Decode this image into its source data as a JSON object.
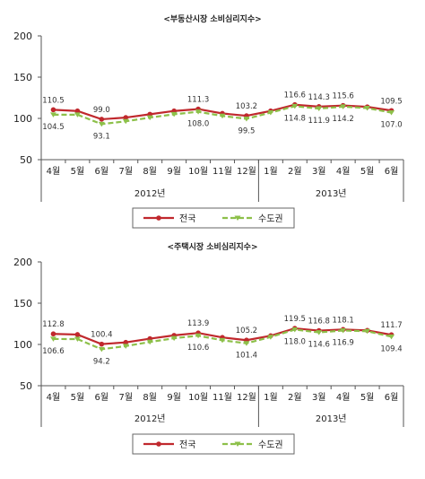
{
  "chart_data": [
    {
      "type": "line",
      "title": "<부동산시장 소비심리지수>",
      "categories": [
        "4월",
        "5월",
        "6월",
        "7월",
        "8월",
        "9월",
        "10월",
        "11월",
        "12월",
        "1월",
        "2월",
        "3월",
        "4월",
        "5월",
        "6월"
      ],
      "groups": [
        {
          "label": "2012년",
          "from": 0,
          "to": 8
        },
        {
          "label": "2013년",
          "from": 9,
          "to": 14
        }
      ],
      "ylim": [
        50,
        200
      ],
      "yticks": [
        50,
        100,
        150,
        200
      ],
      "series": [
        {
          "name": "전국",
          "color": "#c0282d",
          "dashed": false,
          "values": [
            110.5,
            109.0,
            99.0,
            101.0,
            105.0,
            109.0,
            111.3,
            106.0,
            103.2,
            109.0,
            116.6,
            114.3,
            115.6,
            114.0,
            109.5
          ],
          "labels": {
            "0": "110.5",
            "2": "99.0",
            "6": "111.3",
            "8": "103.2",
            "10": "116.6",
            "11": "114.3",
            "12": "115.6",
            "14": "109.5"
          }
        },
        {
          "name": "수도권",
          "color": "#8dc04a",
          "dashed": true,
          "values": [
            104.5,
            104.5,
            93.1,
            96.5,
            101.0,
            105.0,
            108.0,
            103.0,
            99.5,
            107.0,
            114.8,
            111.9,
            114.2,
            112.5,
            107.0
          ],
          "labels": {
            "0": "104.5",
            "2": "93.1",
            "6": "108.0",
            "8": "99.5",
            "10": "114.8",
            "11": "111.9",
            "12": "114.2",
            "14": "107.0"
          }
        }
      ],
      "legend": "bottom"
    },
    {
      "type": "line",
      "title": "<주택시장 소비심리지수>",
      "categories": [
        "4월",
        "5월",
        "6월",
        "7월",
        "8월",
        "9월",
        "10월",
        "11월",
        "12월",
        "1월",
        "2월",
        "3월",
        "4월",
        "5월",
        "6월"
      ],
      "groups": [
        {
          "label": "2012년",
          "from": 0,
          "to": 8
        },
        {
          "label": "2013년",
          "from": 9,
          "to": 14
        }
      ],
      "ylim": [
        50,
        200
      ],
      "yticks": [
        50,
        100,
        150,
        200
      ],
      "series": [
        {
          "name": "전국",
          "color": "#c0282d",
          "dashed": false,
          "values": [
            112.8,
            112.0,
            100.4,
            102.5,
            107.0,
            111.0,
            113.9,
            108.5,
            105.2,
            110.5,
            119.5,
            116.8,
            118.1,
            117.0,
            111.7
          ],
          "labels": {
            "0": "112.8",
            "2": "100.4",
            "6": "113.9",
            "8": "105.2",
            "10": "119.5",
            "11": "116.8",
            "12": "118.1",
            "14": "111.7"
          }
        },
        {
          "name": "수도권",
          "color": "#8dc04a",
          "dashed": true,
          "values": [
            106.6,
            106.5,
            94.2,
            98.0,
            103.0,
            107.5,
            110.6,
            105.0,
            101.4,
            109.0,
            118.0,
            114.6,
            116.9,
            116.0,
            109.4
          ],
          "labels": {
            "0": "106.6",
            "2": "94.2",
            "6": "110.6",
            "8": "101.4",
            "10": "118.0",
            "11": "114.6",
            "12": "116.9",
            "14": "109.4"
          }
        }
      ],
      "legend": "bottom"
    }
  ]
}
